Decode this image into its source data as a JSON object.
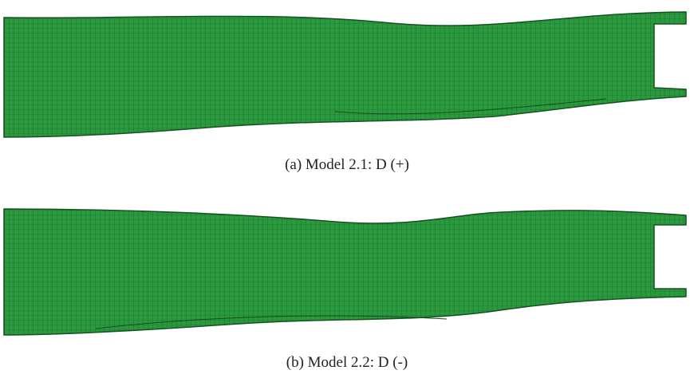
{
  "figures": [
    {
      "caption": "(a) Model 2.1: D (+)"
    },
    {
      "caption": "(b) Model 2.2: D (-)"
    }
  ]
}
